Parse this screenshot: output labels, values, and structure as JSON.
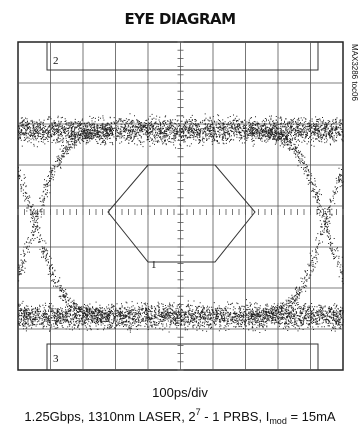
{
  "header": {
    "title": "EYE DIAGRAM",
    "side_note": "MAX3286 toc06"
  },
  "markers": [
    "2",
    "1",
    "3"
  ],
  "x_scale": "100ps/div",
  "caption": {
    "main": "1.25Gbps, 1310nm LASER, 2",
    "exponent": "7",
    "middle": " - 1 PRBS, I",
    "subscript": "mod",
    "end": " = 15mA"
  }
}
